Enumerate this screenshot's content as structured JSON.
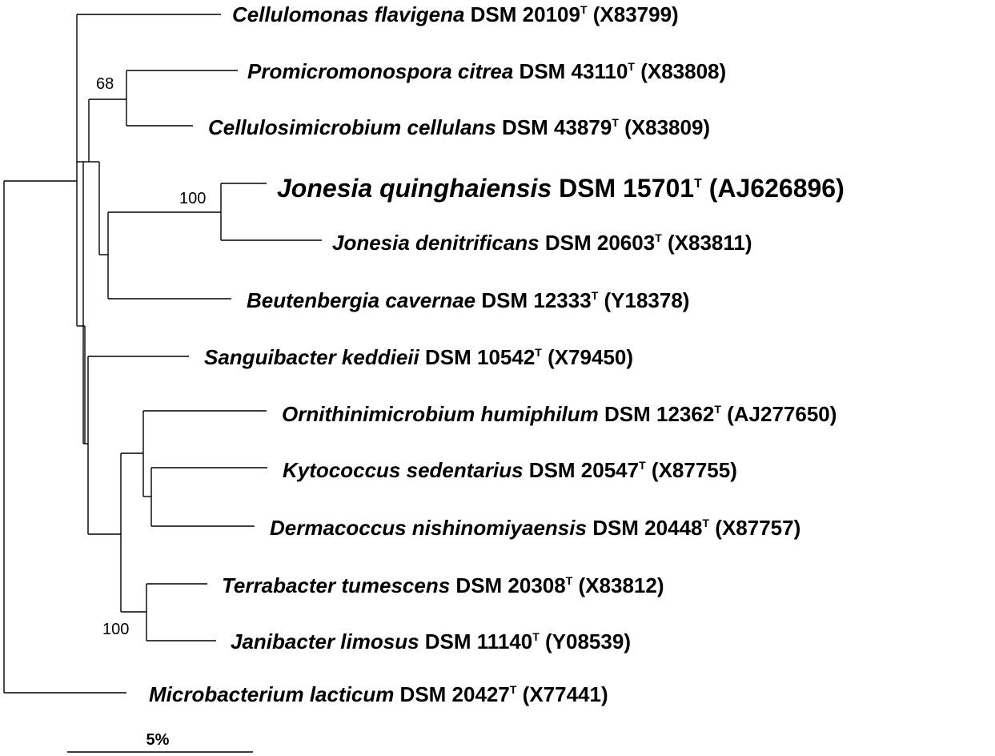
{
  "tree": {
    "taxa": [
      {
        "species": "Cellulomonas flavigena",
        "strain": "DSM 20109",
        "type_mark": "T",
        "accession": "(X83799)"
      },
      {
        "species": "Promicromonospora citrea",
        "strain": "DSM 43110",
        "type_mark": "T",
        "accession": "(X83808)"
      },
      {
        "species": "Cellulosimicrobium cellulans",
        "strain": "DSM 43879",
        "type_mark": "T",
        "accession": "(X83809)"
      },
      {
        "species": "Jonesia quinghaiensis",
        "strain": "DSM 15701",
        "type_mark": "T",
        "accession": "(AJ626896)"
      },
      {
        "species": "Jonesia denitrificans",
        "strain": "DSM 20603",
        "type_mark": "T",
        "accession": "(X83811)"
      },
      {
        "species": "Beutenbergia cavernae",
        "strain": "DSM 12333",
        "type_mark": "T",
        "accession": "(Y18378)"
      },
      {
        "species": "Sanguibacter keddieii",
        "strain": "DSM 10542",
        "type_mark": "T",
        "accession": "(X79450)"
      },
      {
        "species": "Ornithinimicrobium humiphilum",
        "strain": "DSM 12362",
        "type_mark": "T",
        "accession": "(AJ277650)"
      },
      {
        "species": "Kytococcus sedentarius",
        "strain": "DSM 20547",
        "type_mark": "T",
        "accession": "(X87755)"
      },
      {
        "species": "Dermacoccus nishinomiyaensis",
        "strain": "DSM 20448",
        "type_mark": "T",
        "accession": "(X87757)"
      },
      {
        "species": "Terrabacter tumescens",
        "strain": "DSM 20308",
        "type_mark": "T",
        "accession": "(X83812)"
      },
      {
        "species": "Janibacter limosus",
        "strain": "DSM 11140",
        "type_mark": "T",
        "accession": "(Y08539)"
      },
      {
        "species": "Microbacterium lacticum",
        "strain": "DSM 20427",
        "type_mark": "T",
        "accession": "(X77441)"
      }
    ],
    "bootstrap": {
      "promicromonospora_clade": "68",
      "jonesia_clade": "100",
      "terrabacter_janibacter_clade": "100"
    },
    "scale_bar": {
      "label": "5%"
    }
  }
}
